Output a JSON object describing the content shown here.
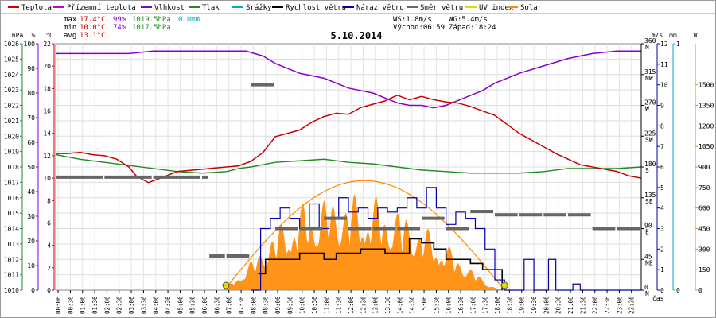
{
  "legend": [
    {
      "label": "Teplota",
      "color": "#cc0000"
    },
    {
      "label": "Přízemní teplota",
      "color": "#cc00cc"
    },
    {
      "label": "Vlhkost",
      "color": "#8800cc"
    },
    {
      "label": "Tlak",
      "color": "#228b22"
    },
    {
      "label": "Srážky",
      "color": "#00aacc"
    },
    {
      "label": "Rychlost větru",
      "color": "#000000"
    },
    {
      "label": "Náraz větru",
      "color": "#0000aa"
    },
    {
      "label": "Směr větru",
      "color": "#666666"
    },
    {
      "label": "UV index",
      "color": "#dddd00"
    },
    {
      "label": "Solar",
      "color": "#ff8800"
    }
  ],
  "stats": {
    "max_label": "max",
    "max_temp": "17.4°C",
    "max_hum": "99%",
    "max_press": "1019.5hPa",
    "max_rain": "0.0mm",
    "min_label": "min",
    "min_temp": "10.0°C",
    "min_hum": "74%",
    "min_press": "1017.5hPa",
    "avg_label": "avg",
    "avg_temp": "13.1°C"
  },
  "wind": {
    "ws": "WS:1.8m/s",
    "wg": "WG:5.4m/s"
  },
  "sun": {
    "sunrise": "Východ:06:59",
    "sunset": "Západ:18:24"
  },
  "colors": {
    "temp": "#cc0000",
    "humidity": "#8800cc",
    "pressure": "#228b22",
    "rain": "#00aacc",
    "speed": "#000000",
    "gust": "#0000aa",
    "direction": "#666666",
    "uv": "#dddd00",
    "solar": "#ff8800"
  },
  "chart_data": {
    "type": "line",
    "title": "5.10.2014",
    "xlabel": "čas",
    "x_range_hours": [
      0,
      24
    ],
    "x_ticks": [
      "00:06",
      "00:36",
      "01:06",
      "01:36",
      "02:06",
      "02:36",
      "03:06",
      "03:36",
      "04:06",
      "04:36",
      "05:06",
      "05:36",
      "06:06",
      "06:36",
      "07:06",
      "07:36",
      "08:06",
      "08:36",
      "09:06",
      "09:36",
      "10:06",
      "10:36",
      "11:06",
      "11:36",
      "12:06",
      "12:36",
      "13:06",
      "13:36",
      "14:06",
      "14:36",
      "15:06",
      "15:36",
      "16:06",
      "16:36",
      "17:06",
      "17:36",
      "18:06",
      "18:36",
      "19:06",
      "19:36",
      "20:06",
      "20:36",
      "21:06",
      "21:36",
      "22:06",
      "22:36",
      "23:06",
      "23:36"
    ],
    "axes": {
      "pressure": {
        "unit": "hPa",
        "range": [
          1010,
          1026
        ],
        "ticks": [
          "1010",
          "1011",
          "1012",
          "1013",
          "1014",
          "1015",
          "1016",
          "1017",
          "1018",
          "1019",
          "1020",
          "1021",
          "1022",
          "1023",
          "1024",
          "1025",
          "1026"
        ]
      },
      "humidity": {
        "unit": "%",
        "range": [
          0,
          100
        ],
        "ticks": [
          "0",
          "10",
          "20",
          "30",
          "40",
          "50",
          "60",
          "70",
          "80",
          "90",
          "100"
        ]
      },
      "temperature": {
        "unit": "°C",
        "range": [
          0,
          22
        ],
        "ticks": [
          "0",
          "2",
          "4",
          "6",
          "8",
          "10",
          "12",
          "14",
          "16",
          "18",
          "20",
          "22"
        ]
      },
      "direction": {
        "range": [
          0,
          360
        ],
        "ticks": [
          "0",
          "45",
          "90",
          "135",
          "180",
          "225",
          "270",
          "315",
          "360"
        ],
        "labels": [
          "N",
          "NE",
          "E",
          "SE",
          "S",
          "SW",
          "W",
          "NW",
          "N"
        ]
      },
      "wind_speed": {
        "unit": "m/s",
        "range": [
          0,
          12
        ],
        "ticks": [
          "0",
          "1",
          "2",
          "3",
          "4",
          "5",
          "6",
          "7",
          "8",
          "9",
          "10",
          "11",
          "12"
        ]
      },
      "rain": {
        "unit": "mm",
        "range": [
          0,
          1
        ],
        "ticks": [
          "0",
          "1"
        ]
      },
      "solar": {
        "unit": "W",
        "range": [
          0,
          1800
        ],
        "ticks": [
          "0",
          "150",
          "300",
          "450",
          "600",
          "750",
          "900",
          "1050",
          "1200",
          "1350",
          "1500"
        ]
      }
    },
    "series": [
      {
        "name": "Teplota",
        "axis": "temperature",
        "x": [
          0,
          0.5,
          1,
          1.5,
          2,
          2.5,
          3,
          3.3,
          3.8,
          4.3,
          5,
          6,
          6.5,
          7,
          7.5,
          8,
          8.5,
          9,
          9.5,
          10,
          10.5,
          11,
          11.5,
          12,
          12.5,
          13,
          13.5,
          14,
          14.5,
          15,
          15.5,
          16,
          16.5,
          17,
          17.5,
          18,
          18.5,
          19,
          19.5,
          20,
          20.5,
          21,
          21.5,
          22,
          22.5,
          23,
          23.5,
          24
        ],
        "values": [
          12.2,
          12.2,
          12.3,
          12.1,
          12.0,
          11.7,
          11.0,
          10.2,
          9.6,
          10.0,
          10.6,
          10.8,
          10.9,
          11.0,
          11.1,
          11.5,
          12.3,
          13.7,
          14.0,
          14.3,
          15.0,
          15.5,
          15.8,
          15.7,
          16.3,
          16.6,
          16.9,
          17.4,
          17.0,
          17.3,
          17.0,
          16.8,
          16.7,
          16.4,
          16.0,
          15.6,
          14.8,
          14.0,
          13.4,
          12.8,
          12.2,
          11.7,
          11.2,
          11.0,
          10.8,
          10.6,
          10.2,
          10.0
        ]
      },
      {
        "name": "Vlhkost",
        "axis": "humidity",
        "x": [
          0,
          1,
          2,
          3,
          4,
          5,
          6,
          7,
          7.8,
          8.5,
          9,
          10,
          11,
          12,
          13,
          14,
          14.5,
          15,
          15.5,
          16,
          16.5,
          17,
          17.5,
          18,
          18.5,
          19,
          20,
          21,
          22,
          23,
          24
        ],
        "values": [
          96,
          96,
          96,
          96,
          97,
          97,
          97,
          97,
          97,
          95,
          92,
          88,
          86,
          82,
          80,
          76,
          75,
          75,
          74,
          75,
          77,
          79,
          81,
          84,
          86,
          88,
          91,
          94,
          96,
          97,
          97
        ]
      },
      {
        "name": "Tlak",
        "axis": "pressure",
        "x": [
          0,
          1,
          2,
          3,
          4,
          5,
          6,
          7,
          7.5,
          8,
          9,
          10,
          11,
          12,
          13,
          14,
          15,
          16,
          17,
          18,
          19,
          20,
          21,
          22,
          23,
          24
        ],
        "values": [
          1018.8,
          1018.5,
          1018.3,
          1018.1,
          1017.9,
          1017.7,
          1017.6,
          1017.7,
          1017.9,
          1018.0,
          1018.3,
          1018.4,
          1018.5,
          1018.3,
          1018.2,
          1018.0,
          1017.8,
          1017.7,
          1017.6,
          1017.6,
          1017.6,
          1017.7,
          1017.9,
          1017.9,
          1017.9,
          1018.0
        ]
      },
      {
        "name": "Rychlost větru",
        "axis": "wind_speed",
        "x": [
          8.3,
          8.6,
          9.0,
          9.5,
          10.0,
          10.5,
          11.0,
          11.5,
          12.0,
          12.5,
          13.0,
          13.5,
          14.0,
          14.5,
          15.0,
          15.5,
          16.0,
          16.5,
          17.0,
          17.5,
          18.0,
          18.3
        ],
        "values": [
          0.8,
          1.5,
          1.5,
          1.5,
          1.8,
          1.8,
          1.5,
          1.8,
          1.8,
          2.0,
          2.0,
          1.8,
          1.8,
          2.5,
          2.3,
          2.0,
          1.5,
          1.5,
          1.3,
          1.0,
          1.0,
          0.0
        ]
      },
      {
        "name": "Náraz větru",
        "axis": "wind_speed",
        "x": [
          8.0,
          8.4,
          8.8,
          9.2,
          9.6,
          10.0,
          10.4,
          10.8,
          11.2,
          11.6,
          12.0,
          12.4,
          12.8,
          13.2,
          13.6,
          14.0,
          14.4,
          14.8,
          15.2,
          15.6,
          16.0,
          16.4,
          16.8,
          17.2,
          17.6,
          18.0,
          18.4,
          18.8,
          19.2,
          19.6,
          20.0,
          20.2,
          20.5,
          21.0,
          21.2,
          21.5,
          22.0,
          24.0
        ],
        "values": [
          0,
          3,
          3.5,
          4,
          3.5,
          3,
          4.2,
          3,
          3.5,
          4.5,
          3.8,
          4.0,
          3.5,
          4.0,
          3.8,
          4.0,
          4.5,
          4.0,
          5.0,
          4.0,
          3.2,
          3.8,
          3.5,
          3.0,
          2.0,
          0.5,
          0,
          0,
          1.5,
          0,
          0,
          1.5,
          0,
          0,
          0.3,
          0,
          0,
          0
        ]
      },
      {
        "name": "Směr větru",
        "axis": "direction",
        "x": [
          0,
          2,
          4,
          6,
          6.3,
          7,
          8,
          9,
          10,
          11,
          12,
          13,
          14,
          15,
          16,
          17,
          18,
          19,
          20,
          21,
          22,
          23,
          24
        ],
        "values": [
          165,
          165,
          165,
          165,
          50,
          50,
          300,
          90,
          90,
          105,
          90,
          90,
          90,
          105,
          90,
          115,
          110,
          110,
          110,
          110,
          90,
          90,
          90
        ]
      },
      {
        "name": "Solar",
        "axis": "solar",
        "x": [
          6.9,
          7.5,
          8.2,
          8.8,
          9.5,
          10.2,
          10.9,
          11.6,
          12.3,
          13.0,
          13.7,
          14.4,
          15.1,
          15.8,
          16.5,
          17.2,
          17.8,
          18.4
        ],
        "values": [
          0,
          120,
          260,
          420,
          560,
          650,
          700,
          720,
          720,
          700,
          650,
          580,
          480,
          380,
          260,
          140,
          40,
          0
        ]
      }
    ],
    "annotations": [
      "Východ:06:59",
      "Západ:18:24"
    ]
  }
}
